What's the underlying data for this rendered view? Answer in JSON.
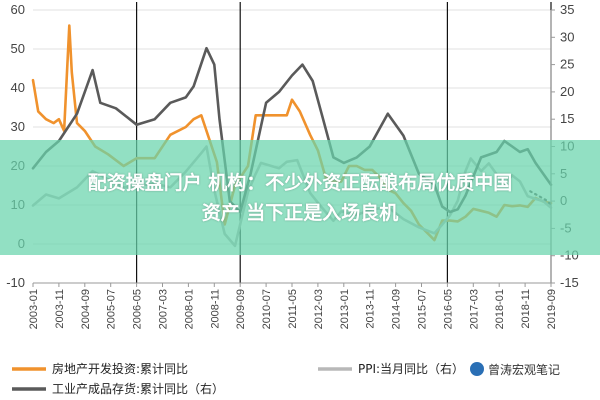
{
  "chart_data": {
    "type": "line",
    "title": "",
    "left_axis": {
      "ylim": [
        -10,
        60
      ],
      "ticks": [
        -10,
        0,
        10,
        20,
        30,
        40,
        50,
        60
      ]
    },
    "right_axis": {
      "ylim": [
        -15,
        35
      ],
      "ticks": [
        -15,
        -10,
        -5,
        0,
        5,
        10,
        15,
        20,
        25,
        30,
        35
      ]
    },
    "x_ticks": [
      "2003-01",
      "2003-11",
      "2004-09",
      "2005-07",
      "2006-05",
      "2007-03",
      "2008-01",
      "2008-11",
      "2009-09",
      "2010-07",
      "2011-05",
      "2012-03",
      "2013-01",
      "2013-11",
      "2014-09",
      "2015-07",
      "2016-05",
      "2017-03",
      "2018-01",
      "2018-11",
      "2019-09"
    ],
    "x_range": [
      "2003-01",
      "2019-09"
    ],
    "dividers": [
      "2006-05",
      "2009-09",
      "2016-05",
      "2019-09"
    ],
    "series": [
      {
        "name": "房地产开发投资:累计同比",
        "axis": "left",
        "color": "#f0922d",
        "style": "solid",
        "points": [
          [
            "2003-01",
            42
          ],
          [
            "2003-03",
            34
          ],
          [
            "2003-06",
            32
          ],
          [
            "2003-09",
            31
          ],
          [
            "2003-11",
            32
          ],
          [
            "2004-01",
            29
          ],
          [
            "2004-03",
            56
          ],
          [
            "2004-04",
            44
          ],
          [
            "2004-06",
            31
          ],
          [
            "2004-09",
            29
          ],
          [
            "2005-01",
            25
          ],
          [
            "2005-06",
            23
          ],
          [
            "2005-12",
            20
          ],
          [
            "2006-05",
            22
          ],
          [
            "2006-12",
            22
          ],
          [
            "2007-06",
            28
          ],
          [
            "2007-12",
            30
          ],
          [
            "2008-03",
            32
          ],
          [
            "2008-06",
            33
          ],
          [
            "2008-09",
            27
          ],
          [
            "2008-12",
            21
          ],
          [
            "2009-03",
            5
          ],
          [
            "2009-07",
            15
          ],
          [
            "2009-12",
            20
          ],
          [
            "2010-03",
            33
          ],
          [
            "2010-07",
            33
          ],
          [
            "2010-12",
            33
          ],
          [
            "2011-03",
            33
          ],
          [
            "2011-05",
            37
          ],
          [
            "2011-08",
            34
          ],
          [
            "2011-12",
            28
          ],
          [
            "2012-03",
            24
          ],
          [
            "2012-06",
            17
          ],
          [
            "2012-09",
            16
          ],
          [
            "2012-12",
            16
          ],
          [
            "2013-03",
            20
          ],
          [
            "2013-06",
            20
          ],
          [
            "2013-09",
            19
          ],
          [
            "2013-12",
            19
          ],
          [
            "2014-03",
            17
          ],
          [
            "2014-06",
            14
          ],
          [
            "2014-09",
            13
          ],
          [
            "2014-12",
            10.5
          ],
          [
            "2015-03",
            8.5
          ],
          [
            "2015-06",
            5
          ],
          [
            "2015-09",
            3
          ],
          [
            "2015-12",
            1
          ],
          [
            "2016-03",
            6
          ],
          [
            "2016-06",
            6
          ],
          [
            "2016-09",
            5.8
          ],
          [
            "2016-12",
            7
          ],
          [
            "2017-03",
            9
          ],
          [
            "2017-06",
            8.5
          ],
          [
            "2017-09",
            8
          ],
          [
            "2017-12",
            7
          ],
          [
            "2018-03",
            10
          ],
          [
            "2018-06",
            9.7
          ],
          [
            "2018-09",
            9.9
          ],
          [
            "2018-12",
            9.5
          ],
          [
            "2019-03",
            11.8
          ],
          [
            "2019-06",
            10.9
          ],
          [
            "2019-09",
            10.5
          ]
        ]
      },
      {
        "name": "PPI:当月同比（右）",
        "axis": "right",
        "color": "#b8b8b8",
        "style": "solid",
        "points": [
          [
            "2003-01",
            -0.8
          ],
          [
            "2003-06",
            1.2
          ],
          [
            "2003-11",
            0.5
          ],
          [
            "2004-06",
            2.5
          ],
          [
            "2004-12",
            5.5
          ],
          [
            "2005-06",
            4
          ],
          [
            "2005-12",
            2.5
          ],
          [
            "2006-05",
            2.8
          ],
          [
            "2006-12",
            3.2
          ],
          [
            "2007-06",
            2.5
          ],
          [
            "2007-12",
            5.4
          ],
          [
            "2008-06",
            8.8
          ],
          [
            "2008-08",
            10
          ],
          [
            "2008-11",
            2
          ],
          [
            "2009-03",
            -6
          ],
          [
            "2009-07",
            -8.2
          ],
          [
            "2009-12",
            1.7
          ],
          [
            "2010-03",
            5
          ],
          [
            "2010-05",
            7
          ],
          [
            "2010-12",
            6
          ],
          [
            "2011-03",
            7.2
          ],
          [
            "2011-07",
            7.5
          ],
          [
            "2011-12",
            1.5
          ],
          [
            "2012-03",
            -0.3
          ],
          [
            "2012-06",
            -2
          ],
          [
            "2012-09",
            -3.6
          ],
          [
            "2012-12",
            -1.9
          ],
          [
            "2013-06",
            -2.5
          ],
          [
            "2013-12",
            -1.5
          ],
          [
            "2014-06",
            -1.1
          ],
          [
            "2014-12",
            -3.3
          ],
          [
            "2015-06",
            -4.8
          ],
          [
            "2015-12",
            -5.9
          ],
          [
            "2016-03",
            -4.3
          ],
          [
            "2016-06",
            -2.6
          ],
          [
            "2016-09",
            0.1
          ],
          [
            "2016-12",
            5.5
          ],
          [
            "2017-02",
            7.8
          ],
          [
            "2017-06",
            5.5
          ],
          [
            "2017-09",
            6.9
          ],
          [
            "2017-12",
            4.9
          ],
          [
            "2018-03",
            3.1
          ],
          [
            "2018-06",
            4.7
          ],
          [
            "2018-09",
            3.6
          ],
          [
            "2018-12",
            0.9
          ],
          [
            "2019-03",
            0.4
          ],
          [
            "2019-06",
            0
          ],
          [
            "2019-09",
            -1.2
          ]
        ]
      },
      {
        "name": "工业产成品存货:累计同比（右）",
        "axis": "right",
        "color": "#5a5a5a",
        "style": "solid",
        "points": [
          [
            "2003-01",
            6
          ],
          [
            "2003-06",
            9
          ],
          [
            "2003-11",
            11
          ],
          [
            "2004-06",
            16
          ],
          [
            "2004-09",
            20
          ],
          [
            "2004-12",
            24
          ],
          [
            "2005-03",
            18
          ],
          [
            "2005-09",
            17
          ],
          [
            "2006-05",
            14
          ],
          [
            "2006-12",
            15
          ],
          [
            "2007-06",
            18
          ],
          [
            "2007-12",
            19
          ],
          [
            "2008-03",
            21
          ],
          [
            "2008-08",
            28
          ],
          [
            "2008-11",
            25
          ],
          [
            "2009-01",
            15
          ],
          [
            "2009-05",
            0
          ],
          [
            "2009-09",
            -2
          ],
          [
            "2010-01",
            5
          ],
          [
            "2010-07",
            18
          ],
          [
            "2010-12",
            20
          ],
          [
            "2011-05",
            23
          ],
          [
            "2011-09",
            25
          ],
          [
            "2012-01",
            22
          ],
          [
            "2012-05",
            15
          ],
          [
            "2012-09",
            8
          ],
          [
            "2013-01",
            7
          ],
          [
            "2013-06",
            8
          ],
          [
            "2013-11",
            10
          ],
          [
            "2014-06",
            16
          ],
          [
            "2014-12",
            12
          ],
          [
            "2015-06",
            5
          ],
          [
            "2015-12",
            3
          ],
          [
            "2016-03",
            -1
          ],
          [
            "2016-06",
            -2
          ],
          [
            "2016-09",
            -1.5
          ],
          [
            "2016-12",
            1
          ],
          [
            "2017-06",
            8
          ],
          [
            "2017-12",
            9
          ],
          [
            "2018-03",
            11
          ],
          [
            "2018-06",
            10
          ],
          [
            "2018-09",
            9
          ],
          [
            "2018-12",
            9.5
          ],
          [
            "2019-03",
            7
          ],
          [
            "2019-06",
            5
          ],
          [
            "2019-09",
            3
          ]
        ]
      },
      {
        "name": "extension",
        "axis": "right",
        "color": "#5a5a5a",
        "style": "dotted",
        "points": [
          [
            "2019-01",
            1.8
          ],
          [
            "2019-04",
            1
          ],
          [
            "2019-07",
            0.2
          ],
          [
            "2019-09",
            -0.6
          ]
        ]
      }
    ],
    "legend": [
      {
        "label": "房地产开发投资:累计同比",
        "color": "#f0922d"
      },
      {
        "label": "PPI:当月同比（右）",
        "color": "#b8b8b8"
      },
      {
        "label": "工业产成品存货:累计同比（右）",
        "color": "#5a5a5a"
      }
    ]
  },
  "banner": {
    "line1": "配资操盘门户 机构：不少外资正酝酿布局优质中国",
    "line2": "资产 当下正是入场良机",
    "color": "#68d4ac"
  },
  "watermark": {
    "text": "曾涛宏观笔记",
    "icon": "wechat-icon"
  }
}
